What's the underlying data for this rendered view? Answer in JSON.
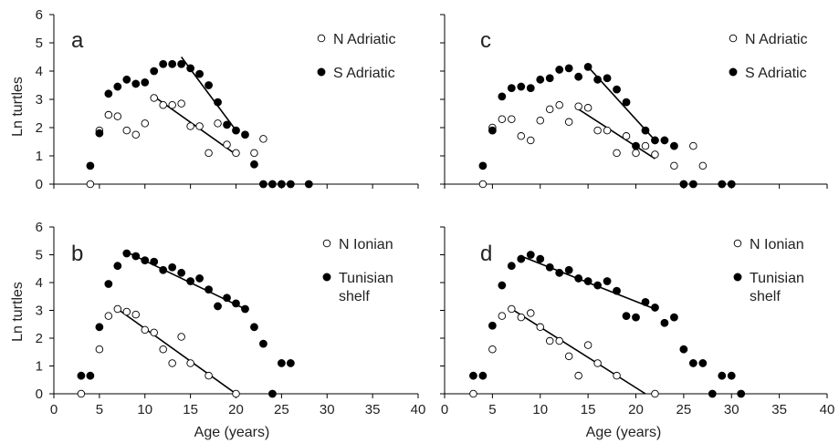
{
  "figure": {
    "shared_y_label": "Ln  turtles",
    "shared_x_label": "Age (years)",
    "legend_colors": {
      "open": "#ffffff",
      "filled": "#000000",
      "stroke": "#000000"
    }
  },
  "chart_data": [
    {
      "type": "scatter",
      "panel_label": "a",
      "xlabel": "",
      "ylabel": "Ln  turtles",
      "xlim": [
        0,
        40
      ],
      "ylim": [
        0,
        6
      ],
      "xticks": [
        "0",
        "5",
        "10",
        "15",
        "20",
        "25",
        "30",
        "35",
        "40"
      ],
      "yticks": [
        "0",
        "1",
        "2",
        "3",
        "4",
        "5",
        "6"
      ],
      "series": [
        {
          "name": "N Adriatic",
          "marker": "open",
          "points": [
            [
              4,
              0
            ],
            [
              5,
              1.9
            ],
            [
              6,
              2.45
            ],
            [
              7,
              2.4
            ],
            [
              8,
              1.9
            ],
            [
              9,
              1.75
            ],
            [
              10,
              2.15
            ],
            [
              11,
              3.05
            ],
            [
              12,
              2.8
            ],
            [
              13,
              2.8
            ],
            [
              14,
              2.85
            ],
            [
              15,
              2.05
            ],
            [
              16,
              2.05
            ],
            [
              17,
              1.1
            ],
            [
              18,
              2.15
            ],
            [
              19,
              1.4
            ],
            [
              20,
              1.1
            ],
            [
              22,
              1.1
            ],
            [
              23,
              1.6
            ],
            [
              24,
              0
            ],
            [
              25,
              0
            ]
          ],
          "trendline": [
            [
              11,
              3.1
            ],
            [
              20,
              1.05
            ]
          ]
        },
        {
          "name": "S Adriatic",
          "marker": "filled",
          "points": [
            [
              4,
              0.65
            ],
            [
              5,
              1.8
            ],
            [
              6,
              3.2
            ],
            [
              7,
              3.45
            ],
            [
              8,
              3.7
            ],
            [
              9,
              3.55
            ],
            [
              10,
              3.6
            ],
            [
              11,
              4.0
            ],
            [
              12,
              4.25
            ],
            [
              13,
              4.25
            ],
            [
              14,
              4.25
            ],
            [
              15,
              4.1
            ],
            [
              16,
              3.9
            ],
            [
              17,
              3.5
            ],
            [
              18,
              2.9
            ],
            [
              19,
              2.1
            ],
            [
              20,
              1.9
            ],
            [
              21,
              1.75
            ],
            [
              22,
              0.7
            ],
            [
              23,
              0
            ],
            [
              24,
              0
            ],
            [
              25,
              0
            ],
            [
              26,
              0
            ],
            [
              28,
              0
            ]
          ],
          "trendline": [
            [
              14,
              4.5
            ],
            [
              20,
              1.9
            ]
          ]
        }
      ]
    },
    {
      "type": "scatter",
      "panel_label": "c",
      "xlabel": "",
      "ylabel": "",
      "xlim": [
        0,
        40
      ],
      "ylim": [
        0,
        6
      ],
      "xticks": [
        "0",
        "5",
        "10",
        "15",
        "20",
        "25",
        "30",
        "35",
        "40"
      ],
      "yticks": [
        "0",
        "1",
        "2",
        "3",
        "4",
        "5",
        "6"
      ],
      "series": [
        {
          "name": "N Adriatic",
          "marker": "open",
          "points": [
            [
              4,
              0
            ],
            [
              5,
              2.0
            ],
            [
              6,
              2.3
            ],
            [
              7,
              2.3
            ],
            [
              8,
              1.7
            ],
            [
              9,
              1.55
            ],
            [
              10,
              2.25
            ],
            [
              11,
              2.65
            ],
            [
              12,
              2.8
            ],
            [
              13,
              2.2
            ],
            [
              14,
              2.75
            ],
            [
              15,
              2.7
            ],
            [
              16,
              1.9
            ],
            [
              17,
              1.9
            ],
            [
              18,
              1.1
            ],
            [
              19,
              1.7
            ],
            [
              20,
              1.1
            ],
            [
              21,
              1.35
            ],
            [
              22,
              1.05
            ],
            [
              24,
              0.65
            ],
            [
              25,
              0
            ],
            [
              26,
              1.35
            ],
            [
              27,
              0.65
            ]
          ],
          "trendline": [
            [
              14,
              2.65
            ],
            [
              22,
              0.9
            ]
          ]
        },
        {
          "name": "S Adriatic",
          "marker": "filled",
          "points": [
            [
              4,
              0.65
            ],
            [
              5,
              1.9
            ],
            [
              6,
              3.1
            ],
            [
              7,
              3.4
            ],
            [
              8,
              3.45
            ],
            [
              9,
              3.4
            ],
            [
              10,
              3.7
            ],
            [
              11,
              3.75
            ],
            [
              12,
              4.05
            ],
            [
              13,
              4.1
            ],
            [
              14,
              3.8
            ],
            [
              15,
              4.15
            ],
            [
              16,
              3.7
            ],
            [
              17,
              3.75
            ],
            [
              18,
              3.35
            ],
            [
              19,
              2.9
            ],
            [
              20,
              1.35
            ],
            [
              21,
              1.9
            ],
            [
              22,
              1.55
            ],
            [
              23,
              1.55
            ],
            [
              24,
              1.35
            ],
            [
              25,
              0
            ],
            [
              26,
              0
            ],
            [
              29,
              0
            ],
            [
              30,
              0
            ]
          ],
          "trendline": [
            [
              15,
              4.15
            ],
            [
              22,
              1.55
            ]
          ]
        }
      ]
    },
    {
      "type": "scatter",
      "panel_label": "b",
      "xlabel": "Age (years)",
      "ylabel": "Ln  turtles",
      "xlim": [
        0,
        40
      ],
      "ylim": [
        0,
        6
      ],
      "xticks": [
        "0",
        "5",
        "10",
        "15",
        "20",
        "25",
        "30",
        "35",
        "40"
      ],
      "yticks": [
        "0",
        "1",
        "2",
        "3",
        "4",
        "5",
        "6"
      ],
      "series": [
        {
          "name": "N Ionian",
          "marker": "open",
          "points": [
            [
              3,
              0
            ],
            [
              5,
              1.6
            ],
            [
              6,
              2.8
            ],
            [
              7,
              3.05
            ],
            [
              8,
              2.95
            ],
            [
              9,
              2.85
            ],
            [
              10,
              2.3
            ],
            [
              11,
              2.2
            ],
            [
              12,
              1.6
            ],
            [
              13,
              1.1
            ],
            [
              14,
              2.05
            ],
            [
              15,
              1.1
            ],
            [
              17,
              0.65
            ],
            [
              20,
              0
            ]
          ],
          "trendline": [
            [
              7,
              3.05
            ],
            [
              20,
              0
            ]
          ]
        },
        {
          "name": "Tunisian\nshelf",
          "marker": "filled",
          "points": [
            [
              3,
              0.65
            ],
            [
              4,
              0.65
            ],
            [
              5,
              2.4
            ],
            [
              6,
              3.95
            ],
            [
              7,
              4.6
            ],
            [
              8,
              5.05
            ],
            [
              9,
              4.95
            ],
            [
              10,
              4.8
            ],
            [
              11,
              4.75
            ],
            [
              12,
              4.45
            ],
            [
              13,
              4.55
            ],
            [
              14,
              4.35
            ],
            [
              15,
              4.05
            ],
            [
              16,
              4.15
            ],
            [
              17,
              3.75
            ],
            [
              18,
              3.15
            ],
            [
              19,
              3.45
            ],
            [
              20,
              3.25
            ],
            [
              21,
              3.05
            ],
            [
              22,
              2.4
            ],
            [
              23,
              1.8
            ],
            [
              24,
              0
            ],
            [
              25,
              1.1
            ],
            [
              26,
              1.1
            ]
          ],
          "trendline": [
            [
              8,
              5.1
            ],
            [
              21,
              3.05
            ]
          ]
        }
      ]
    },
    {
      "type": "scatter",
      "panel_label": "d",
      "xlabel": "Age (years)",
      "ylabel": "",
      "xlim": [
        0,
        40
      ],
      "ylim": [
        0,
        6
      ],
      "xticks": [
        "0",
        "5",
        "10",
        "15",
        "20",
        "25",
        "30",
        "35",
        "40"
      ],
      "yticks": [
        "0",
        "1",
        "2",
        "3",
        "4",
        "5",
        "6"
      ],
      "series": [
        {
          "name": "N Ionian",
          "marker": "open",
          "points": [
            [
              3,
              0
            ],
            [
              5,
              1.6
            ],
            [
              6,
              2.8
            ],
            [
              7,
              3.05
            ],
            [
              8,
              2.75
            ],
            [
              9,
              2.9
            ],
            [
              10,
              2.4
            ],
            [
              11,
              1.9
            ],
            [
              12,
              1.9
            ],
            [
              13,
              1.35
            ],
            [
              14,
              0.65
            ],
            [
              15,
              1.75
            ],
            [
              16,
              1.1
            ],
            [
              18,
              0.65
            ],
            [
              22,
              0
            ]
          ],
          "trendline": [
            [
              7,
              3.05
            ],
            [
              21,
              0
            ]
          ]
        },
        {
          "name": "Tunisian\nshelf",
          "marker": "filled",
          "points": [
            [
              3,
              0.65
            ],
            [
              4,
              0.65
            ],
            [
              5,
              2.45
            ],
            [
              6,
              3.9
            ],
            [
              7,
              4.6
            ],
            [
              8,
              4.85
            ],
            [
              9,
              5.0
            ],
            [
              10,
              4.85
            ],
            [
              11,
              4.55
            ],
            [
              12,
              4.35
            ],
            [
              13,
              4.45
            ],
            [
              14,
              4.15
            ],
            [
              15,
              4.05
            ],
            [
              16,
              3.9
            ],
            [
              17,
              4.05
            ],
            [
              18,
              3.7
            ],
            [
              19,
              2.8
            ],
            [
              20,
              2.75
            ],
            [
              21,
              3.3
            ],
            [
              22,
              3.1
            ],
            [
              23,
              2.55
            ],
            [
              24,
              2.75
            ],
            [
              25,
              1.6
            ],
            [
              26,
              1.1
            ],
            [
              27,
              1.1
            ],
            [
              28,
              0
            ],
            [
              29,
              0.65
            ],
            [
              30,
              0.65
            ],
            [
              31,
              0
            ]
          ],
          "trendline": [
            [
              8,
              4.95
            ],
            [
              22,
              3.05
            ]
          ]
        }
      ]
    }
  ]
}
